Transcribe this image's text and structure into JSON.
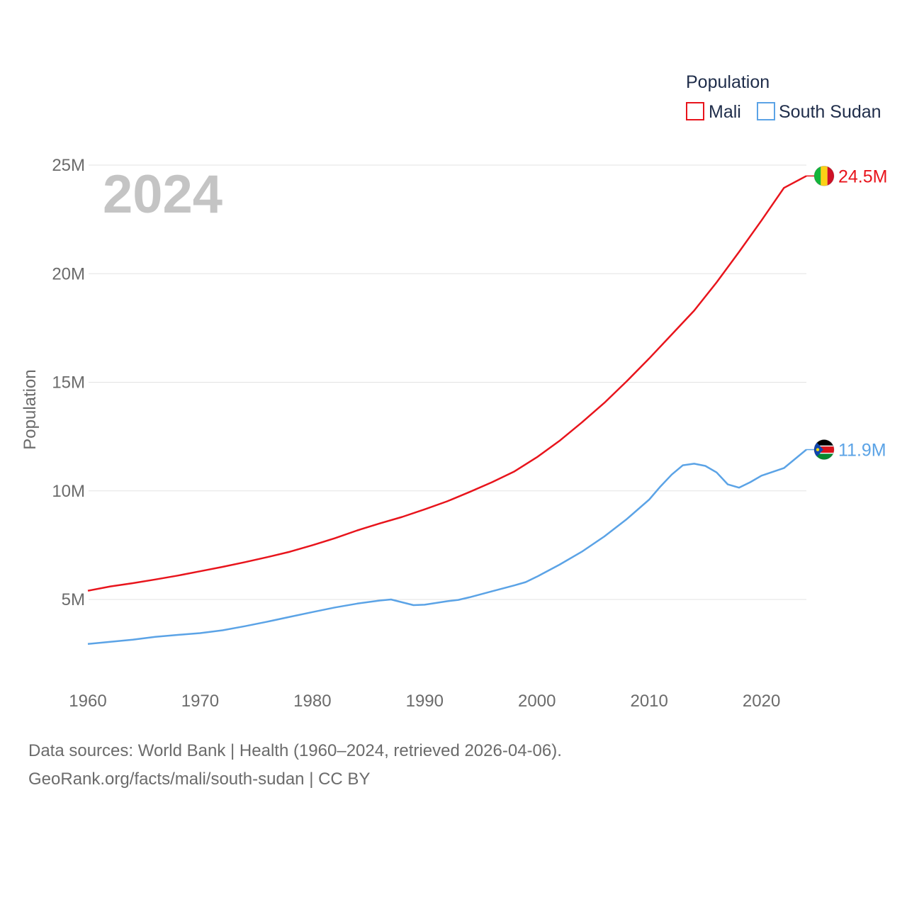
{
  "chart_data": {
    "type": "line",
    "title": "",
    "xlabel": "",
    "ylabel": "Population",
    "year_label": "2024",
    "xlim": [
      1960,
      2024
    ],
    "ylim": [
      1800000,
      26000000
    ],
    "x_ticks": [
      1960,
      1970,
      1980,
      1990,
      2000,
      2010,
      2020
    ],
    "y_ticks": [
      5000000,
      10000000,
      15000000,
      20000000,
      25000000
    ],
    "y_tick_labels": [
      "5M",
      "10M",
      "15M",
      "20M",
      "25M"
    ],
    "legend": {
      "title": "Population",
      "position": "top-right"
    },
    "series": [
      {
        "name": "Mali",
        "color": "#e8141c",
        "end_label": "24.5M",
        "flag": "mali-flag",
        "points": [
          [
            1960,
            5400000
          ],
          [
            1962,
            5600000
          ],
          [
            1964,
            5750000
          ],
          [
            1966,
            5920000
          ],
          [
            1968,
            6100000
          ],
          [
            1970,
            6300000
          ],
          [
            1972,
            6500000
          ],
          [
            1974,
            6720000
          ],
          [
            1976,
            6950000
          ],
          [
            1978,
            7200000
          ],
          [
            1980,
            7500000
          ],
          [
            1982,
            7820000
          ],
          [
            1984,
            8180000
          ],
          [
            1986,
            8500000
          ],
          [
            1988,
            8800000
          ],
          [
            1990,
            9150000
          ],
          [
            1992,
            9520000
          ],
          [
            1994,
            9950000
          ],
          [
            1996,
            10400000
          ],
          [
            1998,
            10900000
          ],
          [
            2000,
            11550000
          ],
          [
            2002,
            12300000
          ],
          [
            2004,
            13150000
          ],
          [
            2006,
            14050000
          ],
          [
            2008,
            15050000
          ],
          [
            2010,
            16100000
          ],
          [
            2012,
            17200000
          ],
          [
            2014,
            18300000
          ],
          [
            2016,
            19600000
          ],
          [
            2018,
            21000000
          ],
          [
            2020,
            22450000
          ],
          [
            2022,
            23950000
          ],
          [
            2024,
            24500000
          ]
        ]
      },
      {
        "name": "South Sudan",
        "color": "#5ba3e6",
        "end_label": "11.9M",
        "flag": "south-sudan-flag",
        "points": [
          [
            1960,
            2950000
          ],
          [
            1962,
            3050000
          ],
          [
            1964,
            3150000
          ],
          [
            1966,
            3280000
          ],
          [
            1968,
            3370000
          ],
          [
            1970,
            3450000
          ],
          [
            1972,
            3580000
          ],
          [
            1974,
            3770000
          ],
          [
            1976,
            3980000
          ],
          [
            1978,
            4200000
          ],
          [
            1980,
            4420000
          ],
          [
            1982,
            4630000
          ],
          [
            1984,
            4810000
          ],
          [
            1986,
            4950000
          ],
          [
            1987,
            5000000
          ],
          [
            1988,
            4870000
          ],
          [
            1989,
            4740000
          ],
          [
            1990,
            4760000
          ],
          [
            1992,
            4920000
          ],
          [
            1993,
            4980000
          ],
          [
            1994,
            5100000
          ],
          [
            1996,
            5380000
          ],
          [
            1998,
            5650000
          ],
          [
            1999,
            5800000
          ],
          [
            2000,
            6050000
          ],
          [
            2002,
            6600000
          ],
          [
            2004,
            7200000
          ],
          [
            2006,
            7900000
          ],
          [
            2008,
            8700000
          ],
          [
            2010,
            9600000
          ],
          [
            2011,
            10200000
          ],
          [
            2012,
            10750000
          ],
          [
            2013,
            11180000
          ],
          [
            2014,
            11250000
          ],
          [
            2015,
            11150000
          ],
          [
            2016,
            10850000
          ],
          [
            2017,
            10300000
          ],
          [
            2018,
            10150000
          ],
          [
            2019,
            10400000
          ],
          [
            2020,
            10700000
          ],
          [
            2022,
            11050000
          ],
          [
            2024,
            11900000
          ]
        ]
      }
    ]
  },
  "footer": {
    "line1": "Data sources: World Bank | Health (1960–2024, retrieved 2026-04-06).",
    "line2": "GeoRank.org/facts/mali/south-sudan | CC BY"
  }
}
